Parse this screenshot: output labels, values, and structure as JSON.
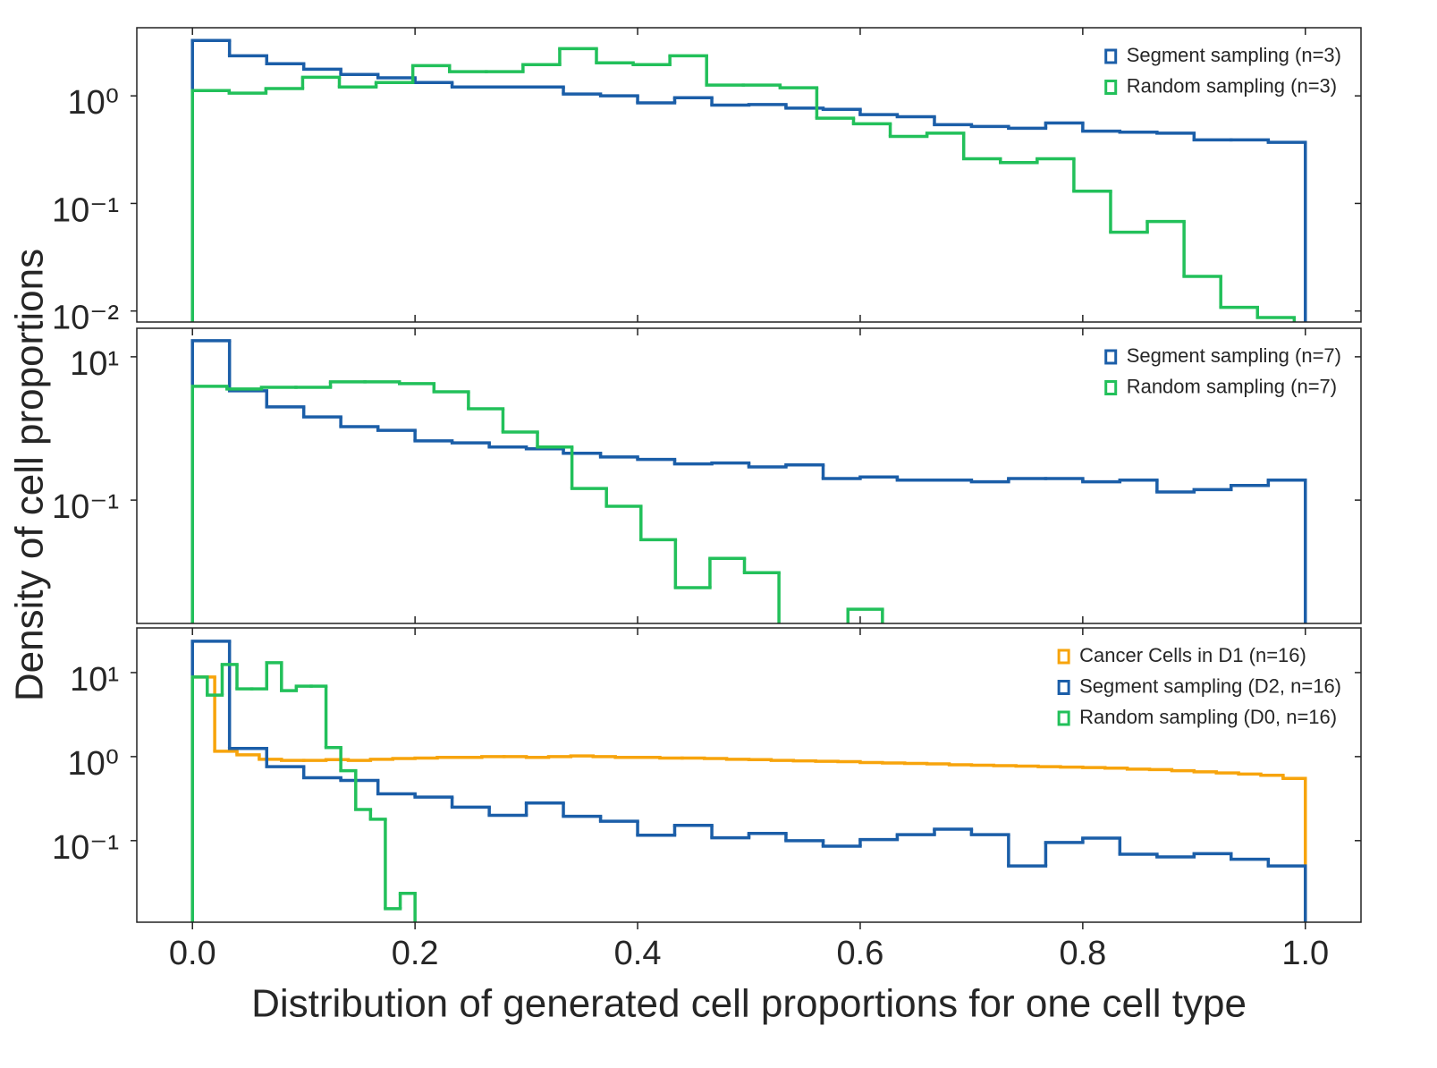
{
  "chart_data": [
    {
      "type": "histogram",
      "log_y": true,
      "xlim": [
        -0.05,
        1.05
      ],
      "ylim": [
        0.0079,
        4.3
      ],
      "yticks": [
        {
          "value": 1,
          "label": "10⁰"
        },
        {
          "value": 0.1,
          "label": "10⁻¹"
        },
        {
          "value": 0.01,
          "label": "10⁻²"
        }
      ],
      "legend": "upper right",
      "series": [
        {
          "name": "Segment sampling (n=3)",
          "color": "#1b5ea8",
          "bins": [
            0,
            0.0333,
            0.0667,
            0.1,
            0.1333,
            0.1667,
            0.2,
            0.2333,
            0.2667,
            0.3,
            0.3333,
            0.3667,
            0.4,
            0.4333,
            0.4667,
            0.5,
            0.5333,
            0.5667,
            0.6,
            0.6333,
            0.6667,
            0.7,
            0.7333,
            0.7667,
            0.8,
            0.8333,
            0.8667,
            0.9,
            0.9333,
            0.9667,
            1.0
          ],
          "values": [
            3.27,
            2.36,
            1.99,
            1.77,
            1.58,
            1.47,
            1.33,
            1.21,
            1.21,
            1.21,
            1.04,
            1.0,
            0.86,
            0.96,
            0.82,
            0.83,
            0.77,
            0.75,
            0.67,
            0.64,
            0.54,
            0.52,
            0.5,
            0.56,
            0.47,
            0.46,
            0.45,
            0.39,
            0.39,
            0.37
          ]
        },
        {
          "name": "Random sampling (n=3)",
          "color": "#22c05a",
          "bins": [
            0,
            0.033,
            0.066,
            0.099,
            0.132,
            0.165,
            0.198,
            0.231,
            0.264,
            0.297,
            0.33,
            0.363,
            0.396,
            0.429,
            0.462,
            0.495,
            0.528,
            0.561,
            0.594,
            0.627,
            0.66,
            0.693,
            0.726,
            0.759,
            0.792,
            0.825,
            0.858,
            0.891,
            0.924,
            0.957,
            0.99
          ],
          "values": [
            1.12,
            1.06,
            1.17,
            1.49,
            1.21,
            1.33,
            1.91,
            1.68,
            1.68,
            1.95,
            2.75,
            2.03,
            1.95,
            2.36,
            1.26,
            1.26,
            1.19,
            0.62,
            0.55,
            0.42,
            0.45,
            0.26,
            0.24,
            0.26,
            0.13,
            0.054,
            0.068,
            0.021,
            0.0108,
            0.0087
          ]
        }
      ]
    },
    {
      "type": "histogram",
      "log_y": true,
      "xlim": [
        -0.05,
        1.05
      ],
      "ylim": [
        0.0019,
        25
      ],
      "yticks": [
        {
          "value": 10,
          "label": "10¹"
        },
        {
          "value": 0.1,
          "label": "10⁻¹"
        }
      ],
      "legend": "upper right",
      "ylabel": "Density of cell proportions",
      "series": [
        {
          "name": "Segment sampling (n=7)",
          "color": "#1b5ea8",
          "bins": [
            0,
            0.0333,
            0.0667,
            0.1,
            0.1333,
            0.1667,
            0.2,
            0.2333,
            0.2667,
            0.3,
            0.3333,
            0.3667,
            0.4,
            0.4333,
            0.4667,
            0.5,
            0.5333,
            0.5667,
            0.6,
            0.6333,
            0.6667,
            0.7,
            0.7333,
            0.7667,
            0.8,
            0.8333,
            0.8667,
            0.9,
            0.9333,
            0.9667,
            1.0
          ],
          "values": [
            16.8,
            3.35,
            2.0,
            1.45,
            1.06,
            0.94,
            0.67,
            0.63,
            0.55,
            0.52,
            0.45,
            0.4,
            0.37,
            0.32,
            0.33,
            0.29,
            0.31,
            0.2,
            0.21,
            0.19,
            0.19,
            0.18,
            0.2,
            0.2,
            0.18,
            0.19,
            0.13,
            0.14,
            0.16,
            0.19
          ]
        },
        {
          "name": "Random sampling (n=7)",
          "color": "#22c05a",
          "bins": [
            0,
            0.031,
            0.062,
            0.093,
            0.124,
            0.155,
            0.186,
            0.217,
            0.248,
            0.279,
            0.31,
            0.341,
            0.372,
            0.403,
            0.434,
            0.465,
            0.496,
            0.527,
            0.558,
            0.589,
            0.62
          ],
          "values": [
            3.87,
            3.55,
            3.75,
            3.75,
            4.47,
            4.47,
            4.22,
            3.25,
            1.88,
            0.89,
            0.55,
            0.145,
            0.082,
            0.028,
            0.006,
            0.0154,
            0.0097,
            0,
            0,
            0.003
          ]
        }
      ]
    },
    {
      "type": "histogram",
      "log_y": true,
      "xlim": [
        -0.05,
        1.05
      ],
      "ylim": [
        0.0107,
        34
      ],
      "yticks": [
        {
          "value": 10,
          "label": "10¹"
        },
        {
          "value": 1,
          "label": "10⁰"
        },
        {
          "value": 0.1,
          "label": "10⁻¹"
        }
      ],
      "xticks": [
        {
          "value": 0,
          "label": "0.0"
        },
        0.2,
        0.4,
        0.6,
        0.8,
        {
          "value": 1,
          "label": "1.0"
        }
      ],
      "xlabel": "Distribution of generated cell proportions for one cell type",
      "legend": "upper right",
      "series": [
        {
          "name": "Cancer Cells in D1 (n=16)",
          "color": "#f7a40c",
          "bins": [
            0,
            0.02,
            0.04,
            0.06,
            0.08,
            0.1,
            0.12,
            0.14,
            0.16,
            0.18,
            0.2,
            0.22,
            0.24,
            0.26,
            0.28,
            0.3,
            0.32,
            0.34,
            0.36,
            0.38,
            0.4,
            0.42,
            0.44,
            0.46,
            0.48,
            0.5,
            0.52,
            0.54,
            0.56,
            0.58,
            0.6,
            0.62,
            0.64,
            0.66,
            0.68,
            0.7,
            0.72,
            0.74,
            0.76,
            0.78,
            0.8,
            0.82,
            0.84,
            0.86,
            0.88,
            0.9,
            0.92,
            0.94,
            0.96,
            0.98,
            1.0
          ],
          "values": [
            8.85,
            1.16,
            1.05,
            0.93,
            0.9,
            0.9,
            0.92,
            0.9,
            0.93,
            0.95,
            0.96,
            0.98,
            0.98,
            1.0,
            1.0,
            0.98,
            1.0,
            1.02,
            1.0,
            0.98,
            0.98,
            0.96,
            0.96,
            0.95,
            0.93,
            0.92,
            0.9,
            0.89,
            0.88,
            0.87,
            0.85,
            0.84,
            0.83,
            0.82,
            0.8,
            0.79,
            0.78,
            0.77,
            0.76,
            0.75,
            0.74,
            0.73,
            0.71,
            0.7,
            0.68,
            0.66,
            0.64,
            0.62,
            0.6,
            0.55
          ]
        },
        {
          "name": "Segment sampling (D2, n=16)",
          "color": "#1b5ea8",
          "bins": [
            0,
            0.0333,
            0.0667,
            0.1,
            0.1333,
            0.1667,
            0.2,
            0.2333,
            0.2667,
            0.3,
            0.3333,
            0.3667,
            0.4,
            0.4333,
            0.4667,
            0.5,
            0.5333,
            0.5667,
            0.6,
            0.6333,
            0.6667,
            0.7,
            0.7333,
            0.7667,
            0.8,
            0.8333,
            0.8667,
            0.9,
            0.9333,
            0.9667,
            1.0
          ],
          "values": [
            23.6,
            1.25,
            0.76,
            0.56,
            0.52,
            0.36,
            0.33,
            0.25,
            0.2,
            0.28,
            0.195,
            0.17,
            0.116,
            0.152,
            0.108,
            0.122,
            0.1,
            0.086,
            0.103,
            0.118,
            0.137,
            0.118,
            0.05,
            0.095,
            0.107,
            0.069,
            0.064,
            0.07,
            0.06,
            0.05
          ]
        },
        {
          "name": "Random sampling (D0, n=16)",
          "color": "#22c05a",
          "bins": [
            0,
            0.0133,
            0.0267,
            0.04,
            0.0533,
            0.0667,
            0.08,
            0.0933,
            0.1067,
            0.12,
            0.1333,
            0.1467,
            0.16,
            0.1733,
            0.1867,
            0.2
          ],
          "values": [
            8.85,
            5.4,
            12.5,
            6.4,
            6.4,
            13.1,
            6.1,
            6.9,
            6.9,
            1.28,
            0.68,
            0.235,
            0.18,
            0.0155,
            0.0236
          ]
        }
      ]
    }
  ]
}
